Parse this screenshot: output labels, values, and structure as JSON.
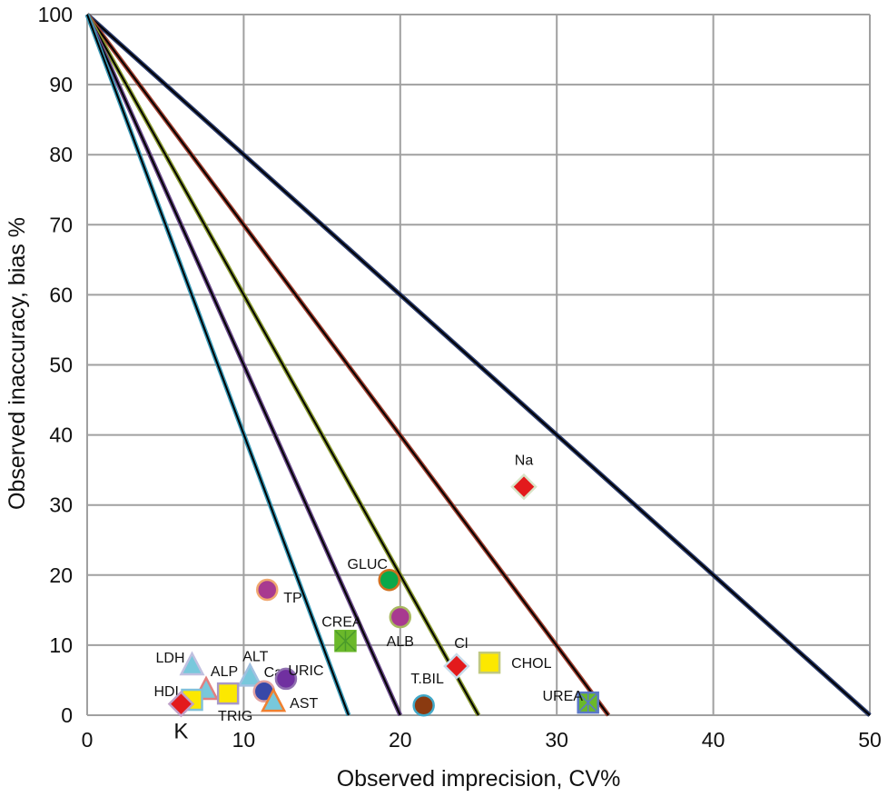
{
  "chart_data": {
    "type": "scatter",
    "title": "",
    "xlabel": "Observed imprecision, CV%",
    "ylabel": "Observed inaccuracy, bias  %",
    "xlim": [
      0,
      50
    ],
    "ylim": [
      0,
      100
    ],
    "xticks": [
      0,
      10,
      20,
      30,
      40,
      50
    ],
    "yticks": [
      0,
      10,
      20,
      30,
      40,
      50,
      60,
      70,
      80,
      90,
      100
    ],
    "grid": true,
    "lines": [
      {
        "from": [
          0,
          100
        ],
        "to": [
          50,
          0
        ],
        "color": "#2a3a6a"
      },
      {
        "from": [
          0,
          100
        ],
        "to": [
          33.3,
          0
        ],
        "color": "#a04030"
      },
      {
        "from": [
          0,
          100
        ],
        "to": [
          25,
          0
        ],
        "color": "#8a9a30"
      },
      {
        "from": [
          0,
          100
        ],
        "to": [
          20,
          0
        ],
        "color": "#6a4a8a"
      },
      {
        "from": [
          0,
          100
        ],
        "to": [
          16.7,
          0
        ],
        "color": "#3a9ab8"
      }
    ],
    "points": [
      {
        "label": "Na",
        "x": 27.9,
        "y": 32.6,
        "shape": "diamond",
        "fill": "#e31a1c",
        "stroke": "#d8e4c8"
      },
      {
        "label": "GLUC",
        "x": 19.3,
        "y": 19.3,
        "shape": "circle",
        "fill": "#0aa84a",
        "stroke": "#d07020"
      },
      {
        "label": "TP",
        "x": 11.5,
        "y": 17.9,
        "shape": "circle",
        "fill": "#a83a90",
        "stroke": "#f0a870"
      },
      {
        "label": "ALB",
        "x": 20.0,
        "y": 14.0,
        "shape": "circle",
        "fill": "#a83a90",
        "stroke": "#a8b860"
      },
      {
        "label": "CREA",
        "x": 16.5,
        "y": 10.6,
        "shape": "xsquare",
        "fill": "#6ab82a",
        "stroke": "#6ab82a"
      },
      {
        "label": "Cl",
        "x": 23.6,
        "y": 7.0,
        "shape": "diamond",
        "fill": "#e31a1c",
        "stroke": "#c8dcea"
      },
      {
        "label": "CHOL",
        "x": 25.7,
        "y": 7.5,
        "shape": "square",
        "fill": "#fce800",
        "stroke": "#c0c880"
      },
      {
        "label": "UREA",
        "x": 32.0,
        "y": 1.8,
        "shape": "xsquare",
        "fill": "#6ab82a",
        "stroke": "#5a78c8"
      },
      {
        "label": "T.BIL",
        "x": 21.5,
        "y": 1.4,
        "shape": "circle",
        "fill": "#8a3a10",
        "stroke": "#40a8c8"
      },
      {
        "label": "LDH",
        "x": 6.7,
        "y": 7.0,
        "shape": "triangle",
        "fill": "#78c8dc",
        "stroke": "#c0c0e0"
      },
      {
        "label": "ALP",
        "x": 7.6,
        "y": 3.5,
        "shape": "triangle",
        "fill": "#78c8dc",
        "stroke": "#e08080"
      },
      {
        "label": "ALT",
        "x": 10.4,
        "y": 5.4,
        "shape": "triangle",
        "fill": "#78c8dc",
        "stroke": "#a0c0e0"
      },
      {
        "label": "Ca",
        "x": 11.3,
        "y": 3.4,
        "shape": "circle",
        "fill": "#3848a8",
        "stroke": "#e0a0a0"
      },
      {
        "label": "URIC",
        "x": 12.7,
        "y": 5.2,
        "shape": "circle",
        "fill": "#7030a0",
        "stroke": "#9070b0"
      },
      {
        "label": "AST",
        "x": 11.9,
        "y": 1.8,
        "shape": "triangle",
        "fill": "#78c8dc",
        "stroke": "#f08030"
      },
      {
        "label": "TRIG",
        "x": 9.0,
        "y": 3.1,
        "shape": "square",
        "fill": "#fce800",
        "stroke": "#a898c8"
      },
      {
        "label": "HDL",
        "x": 6.7,
        "y": 2.2,
        "shape": "square",
        "fill": "#fce800",
        "stroke": "#80c0d8"
      },
      {
        "label": "K",
        "x": 6.0,
        "y": 1.6,
        "shape": "diamond",
        "fill": "#e31a1c",
        "stroke": "#c0a0c8"
      }
    ]
  }
}
